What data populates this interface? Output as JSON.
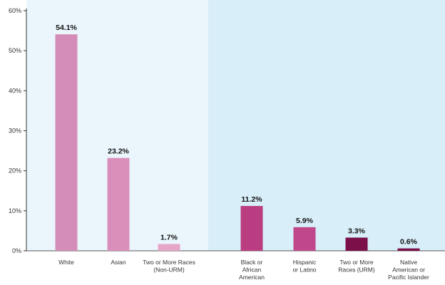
{
  "chart_data": {
    "type": "bar",
    "categories": [
      "White",
      "Asian",
      "Two or More Races (Non-URM)",
      "Black or African American",
      "Hispanic or Latino",
      "Two or More Races (URM)",
      "Native American or Pacific Islander"
    ],
    "category_label_lines": [
      [
        "White"
      ],
      [
        "Asian"
      ],
      [
        "Two or More Races",
        "(Non-URM)"
      ],
      [
        "Black or",
        "African",
        "American"
      ],
      [
        "Hispanic",
        "or Latino"
      ],
      [
        "Two or More",
        "Races (URM)"
      ],
      [
        "Native",
        "American or",
        "Pacific Islander"
      ]
    ],
    "values": [
      54.1,
      23.2,
      1.7,
      11.2,
      5.9,
      3.3,
      0.6
    ],
    "data_labels": [
      "54.1%",
      "23.2%",
      "1.7%",
      "11.2%",
      "5.9%",
      "3.3%",
      "0.6%"
    ],
    "ylim": [
      0,
      60
    ],
    "yticks": [
      0,
      10,
      20,
      30,
      40,
      50,
      60
    ],
    "ytick_labels": [
      "0%",
      "10%",
      "20%",
      "30%",
      "40%",
      "50%",
      "60%"
    ],
    "groups": [
      {
        "categories": [
          0,
          1,
          2
        ],
        "background": "#eaf6fc"
      },
      {
        "categories": [
          3,
          4,
          5,
          6
        ],
        "background": "#d8eef9"
      }
    ],
    "bar_colors": [
      "#d48db8",
      "#da8fbb",
      "#e6a6c8",
      "#b93d80",
      "#c0488a",
      "#7a0f4a",
      "#7a0f4a"
    ],
    "grid": false,
    "title": "",
    "xlabel": "",
    "ylabel": ""
  }
}
